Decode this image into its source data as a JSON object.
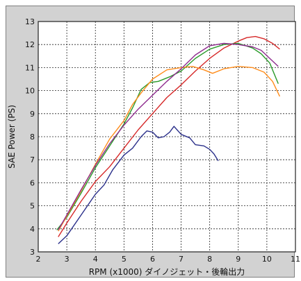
{
  "chart_data": {
    "type": "line",
    "title": "",
    "xlabel": "RPM (x1000) ダイノジェット・後輪出力",
    "ylabel": "SAE Power (PS)",
    "xlim": [
      2,
      11
    ],
    "ylim": [
      3,
      13
    ],
    "xticks": [
      2,
      3,
      4,
      5,
      6,
      7,
      8,
      9,
      10,
      11
    ],
    "yticks": [
      3,
      4,
      5,
      6,
      7,
      8,
      9,
      10,
      11,
      12,
      13
    ],
    "grid": true,
    "legend": "none",
    "series": [
      {
        "color": "#d62828",
        "points": [
          [
            2.7,
            3.65
          ],
          [
            3.0,
            4.25
          ],
          [
            3.5,
            5.2
          ],
          [
            4.0,
            6.05
          ],
          [
            4.5,
            6.7
          ],
          [
            5.0,
            7.5
          ],
          [
            5.5,
            8.3
          ],
          [
            6.0,
            9.0
          ],
          [
            6.5,
            9.7
          ],
          [
            7.0,
            10.25
          ],
          [
            7.5,
            10.85
          ],
          [
            8.0,
            11.4
          ],
          [
            8.5,
            11.85
          ],
          [
            9.0,
            12.15
          ],
          [
            9.3,
            12.3
          ],
          [
            9.6,
            12.35
          ],
          [
            9.9,
            12.25
          ],
          [
            10.2,
            12.05
          ],
          [
            10.45,
            11.8
          ]
        ]
      },
      {
        "color": "#2a9a2a",
        "points": [
          [
            2.65,
            3.95
          ],
          [
            3.0,
            4.5
          ],
          [
            3.5,
            5.55
          ],
          [
            4.0,
            6.65
          ],
          [
            4.5,
            7.6
          ],
          [
            5.0,
            8.55
          ],
          [
            5.3,
            9.25
          ],
          [
            5.6,
            10.05
          ],
          [
            5.9,
            10.35
          ],
          [
            6.2,
            10.4
          ],
          [
            6.6,
            10.6
          ],
          [
            7.0,
            10.85
          ],
          [
            7.5,
            11.4
          ],
          [
            8.0,
            11.8
          ],
          [
            8.5,
            12.0
          ],
          [
            9.0,
            12.05
          ],
          [
            9.5,
            11.85
          ],
          [
            9.8,
            11.6
          ],
          [
            10.1,
            11.2
          ],
          [
            10.4,
            10.3
          ]
        ]
      },
      {
        "color": "#ff8c1a",
        "points": [
          [
            2.7,
            3.9
          ],
          [
            3.0,
            4.55
          ],
          [
            3.5,
            5.65
          ],
          [
            4.0,
            6.8
          ],
          [
            4.5,
            7.9
          ],
          [
            5.0,
            8.7
          ],
          [
            5.3,
            9.4
          ],
          [
            5.6,
            9.9
          ],
          [
            6.0,
            10.5
          ],
          [
            6.5,
            10.9
          ],
          [
            7.0,
            11.0
          ],
          [
            7.4,
            11.05
          ],
          [
            7.8,
            10.9
          ],
          [
            8.1,
            10.75
          ],
          [
            8.5,
            10.95
          ],
          [
            9.0,
            11.05
          ],
          [
            9.5,
            11.0
          ],
          [
            9.9,
            10.8
          ],
          [
            10.2,
            10.4
          ],
          [
            10.45,
            9.75
          ]
        ]
      },
      {
        "color": "#8e2b8e",
        "points": [
          [
            2.7,
            3.95
          ],
          [
            3.0,
            4.6
          ],
          [
            3.5,
            5.7
          ],
          [
            4.0,
            6.75
          ],
          [
            4.5,
            7.7
          ],
          [
            5.0,
            8.5
          ],
          [
            5.5,
            9.2
          ],
          [
            6.0,
            9.8
          ],
          [
            6.5,
            10.4
          ],
          [
            7.0,
            10.95
          ],
          [
            7.5,
            11.55
          ],
          [
            8.0,
            11.95
          ],
          [
            8.5,
            12.05
          ],
          [
            9.0,
            12.0
          ],
          [
            9.5,
            11.9
          ],
          [
            9.8,
            11.75
          ],
          [
            10.1,
            11.4
          ],
          [
            10.4,
            11.05
          ]
        ]
      },
      {
        "color": "#2a2f8a",
        "points": [
          [
            2.7,
            3.35
          ],
          [
            3.0,
            3.7
          ],
          [
            3.5,
            4.6
          ],
          [
            4.0,
            5.5
          ],
          [
            4.3,
            5.9
          ],
          [
            4.6,
            6.55
          ],
          [
            5.0,
            7.2
          ],
          [
            5.3,
            7.5
          ],
          [
            5.6,
            8.0
          ],
          [
            5.8,
            8.25
          ],
          [
            6.0,
            8.2
          ],
          [
            6.2,
            7.95
          ],
          [
            6.4,
            8.0
          ],
          [
            6.6,
            8.2
          ],
          [
            6.75,
            8.45
          ],
          [
            7.0,
            8.1
          ],
          [
            7.3,
            7.95
          ],
          [
            7.5,
            7.65
          ],
          [
            7.8,
            7.6
          ],
          [
            8.0,
            7.45
          ],
          [
            8.15,
            7.25
          ],
          [
            8.3,
            6.95
          ]
        ]
      }
    ]
  }
}
